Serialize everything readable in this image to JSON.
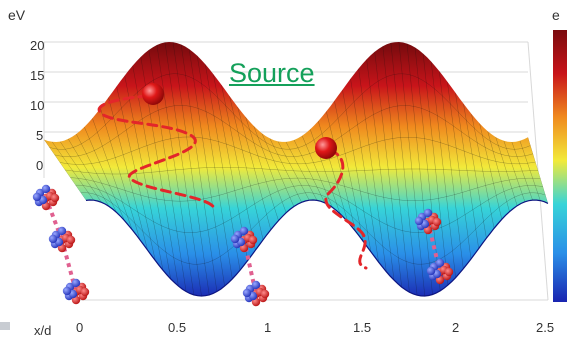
{
  "figure": {
    "unit_left": "eV",
    "unit_right": "e",
    "source_link": "Source",
    "x_axis_label": "x/d",
    "y_ticks": [
      "20",
      "15",
      "10",
      "5",
      "0"
    ],
    "x_ticks": [
      "0",
      "0.5",
      "1",
      "1.5",
      "2",
      "2.5"
    ],
    "colormap": [
      "#1f2fbf",
      "#2a8fe8",
      "#37d4d8",
      "#f2ea3a",
      "#f08a1e",
      "#c8141a",
      "#8a0d10"
    ]
  }
}
